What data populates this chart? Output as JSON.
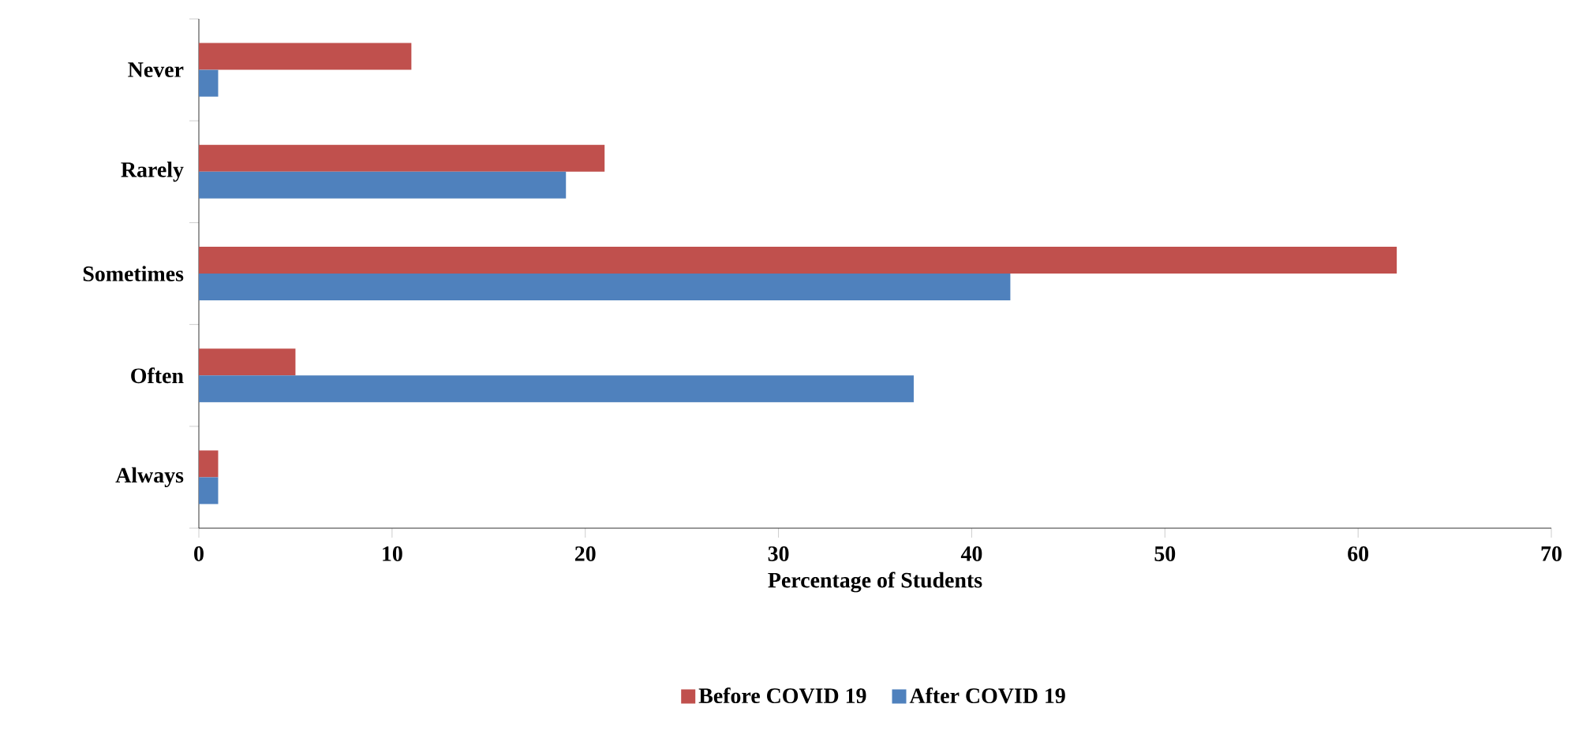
{
  "chart_data": {
    "type": "bar",
    "orientation": "horizontal",
    "categories": [
      "Never",
      "Rarely",
      "Sometimes",
      "Often",
      "Always"
    ],
    "series": [
      {
        "name": "Before COVID 19",
        "color": "#c0504d",
        "values": [
          11,
          21,
          62,
          5,
          1
        ]
      },
      {
        "name": "After COVID 19",
        "color": "#4f81bd",
        "values": [
          1,
          19,
          42,
          37,
          1
        ]
      }
    ],
    "xlim": [
      0,
      70
    ],
    "xticks": [
      0,
      10,
      20,
      30,
      40,
      50,
      60,
      70
    ],
    "xlabel": "Percentage of Students",
    "legend": "bottom"
  }
}
